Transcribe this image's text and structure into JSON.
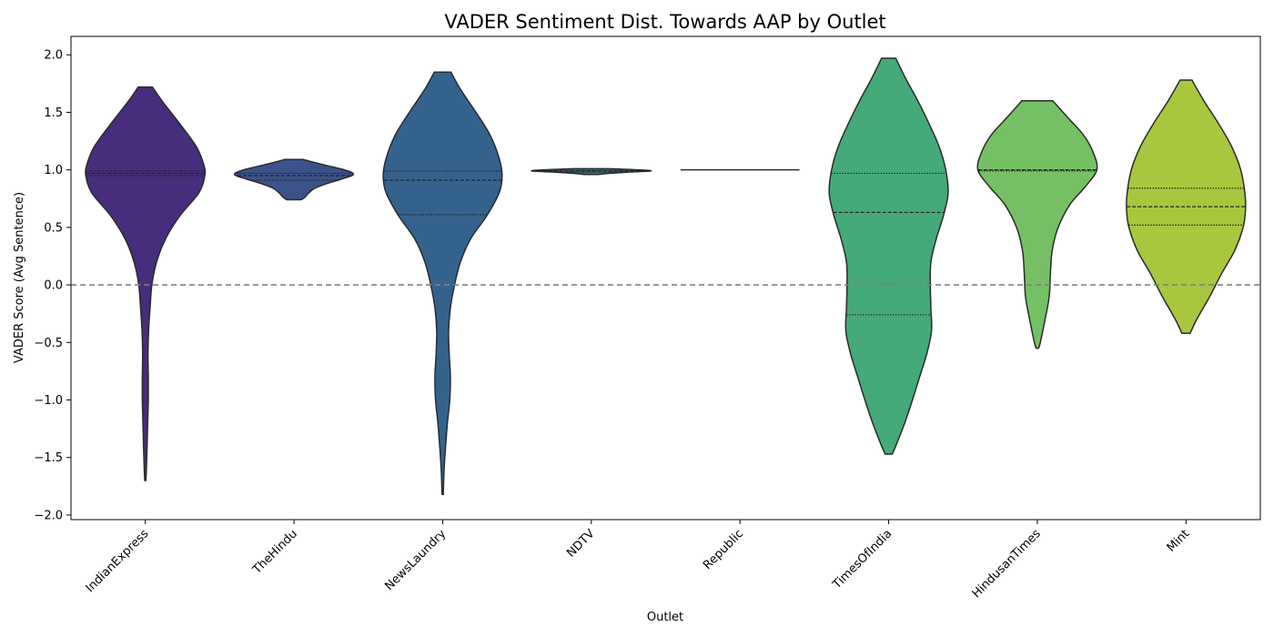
{
  "chart_data": {
    "type": "violin",
    "title": "VADER Sentiment Dist. Towards AAP by Outlet",
    "xlabel": "Outlet",
    "ylabel": "VADER Score (Avg Sentence)",
    "ylim": [
      -2.04,
      2.16
    ],
    "yticks": [
      -2.0,
      -1.5,
      -1.0,
      -0.5,
      0.0,
      0.5,
      1.0,
      1.5,
      2.0
    ],
    "ytick_labels": [
      "−2.0",
      "−1.5",
      "−1.0",
      "−0.5",
      "0.0",
      "0.5",
      "1.0",
      "1.5",
      "2.0"
    ],
    "reference_line": 0.0,
    "inner": "quartiles",
    "categories": [
      "IndianExpress",
      "TheHindu",
      "NewsLaundry",
      "NDTV",
      "Republic",
      "TimesOfIndia",
      "HindusanTimes",
      "Mint"
    ],
    "series": [
      {
        "category": "IndianExpress",
        "color": "#472d7b",
        "quartiles": [
          0.95,
          0.97,
          0.99
        ],
        "profile": [
          [
            1.72,
            0.12
          ],
          [
            1.6,
            0.28
          ],
          [
            1.4,
            0.58
          ],
          [
            1.2,
            0.86
          ],
          [
            1.05,
            0.98
          ],
          [
            0.95,
            1.0
          ],
          [
            0.8,
            0.9
          ],
          [
            0.6,
            0.58
          ],
          [
            0.4,
            0.34
          ],
          [
            0.2,
            0.19
          ],
          [
            0.0,
            0.11
          ],
          [
            -0.2,
            0.08
          ],
          [
            -0.4,
            0.055
          ],
          [
            -0.6,
            0.045
          ],
          [
            -0.8,
            0.05
          ],
          [
            -1.0,
            0.05
          ],
          [
            -1.2,
            0.04
          ],
          [
            -1.4,
            0.03
          ],
          [
            -1.6,
            0.018
          ],
          [
            -1.7,
            0.01
          ]
        ]
      },
      {
        "category": "TheHindu",
        "color": "#3b528b",
        "quartiles": [
          0.91,
          0.95,
          0.97
        ],
        "profile": [
          [
            1.09,
            0.15
          ],
          [
            1.05,
            0.45
          ],
          [
            1.0,
            0.85
          ],
          [
            0.96,
            1.0
          ],
          [
            0.92,
            0.8
          ],
          [
            0.88,
            0.55
          ],
          [
            0.84,
            0.35
          ],
          [
            0.8,
            0.25
          ],
          [
            0.76,
            0.18
          ],
          [
            0.74,
            0.12
          ]
        ]
      },
      {
        "category": "NewsLaundry",
        "color": "#33638d",
        "quartiles": [
          0.61,
          0.91,
          0.99
        ],
        "profile": [
          [
            1.85,
            0.14
          ],
          [
            1.7,
            0.3
          ],
          [
            1.5,
            0.56
          ],
          [
            1.3,
            0.8
          ],
          [
            1.1,
            0.95
          ],
          [
            0.95,
            1.0
          ],
          [
            0.8,
            0.95
          ],
          [
            0.6,
            0.74
          ],
          [
            0.4,
            0.47
          ],
          [
            0.2,
            0.3
          ],
          [
            0.0,
            0.2
          ],
          [
            -0.2,
            0.13
          ],
          [
            -0.4,
            0.1
          ],
          [
            -0.6,
            0.11
          ],
          [
            -0.8,
            0.13
          ],
          [
            -1.0,
            0.12
          ],
          [
            -1.2,
            0.08
          ],
          [
            -1.4,
            0.05
          ],
          [
            -1.6,
            0.025
          ],
          [
            -1.82,
            0.01
          ]
        ]
      },
      {
        "category": "NDTV",
        "color": "#2a788e",
        "quartiles": [
          0.98,
          0.99,
          0.995
        ],
        "profile": [
          [
            1.01,
            0.3
          ],
          [
            1.0,
            0.8
          ],
          [
            0.99,
            1.0
          ],
          [
            0.98,
            0.6
          ],
          [
            0.97,
            0.3
          ],
          [
            0.96,
            0.12
          ]
        ]
      },
      {
        "category": "Republic",
        "color": "#21918c",
        "quartiles": [
          1.0,
          1.0,
          1.0
        ],
        "profile": [
          [
            1.0,
            1.0
          ]
        ]
      },
      {
        "category": "TimesOfIndia",
        "color": "#44aa77",
        "quartiles": [
          -0.26,
          0.63,
          0.97
        ],
        "profile": [
          [
            1.97,
            0.12
          ],
          [
            1.8,
            0.28
          ],
          [
            1.6,
            0.49
          ],
          [
            1.4,
            0.68
          ],
          [
            1.2,
            0.85
          ],
          [
            1.0,
            0.96
          ],
          [
            0.8,
            1.0
          ],
          [
            0.6,
            0.92
          ],
          [
            0.4,
            0.8
          ],
          [
            0.2,
            0.71
          ],
          [
            0.0,
            0.7
          ],
          [
            -0.2,
            0.71
          ],
          [
            -0.4,
            0.72
          ],
          [
            -0.6,
            0.64
          ],
          [
            -0.8,
            0.52
          ],
          [
            -1.0,
            0.4
          ],
          [
            -1.2,
            0.27
          ],
          [
            -1.4,
            0.12
          ],
          [
            -1.47,
            0.06
          ]
        ]
      },
      {
        "category": "HindusanTimes",
        "color": "#75c064",
        "quartiles": [
          0.99,
          1.0,
          1.0
        ],
        "profile": [
          [
            1.6,
            0.26
          ],
          [
            1.45,
            0.52
          ],
          [
            1.3,
            0.78
          ],
          [
            1.15,
            0.94
          ],
          [
            1.0,
            1.0
          ],
          [
            0.85,
            0.8
          ],
          [
            0.7,
            0.55
          ],
          [
            0.5,
            0.35
          ],
          [
            0.3,
            0.25
          ],
          [
            0.1,
            0.22
          ],
          [
            -0.1,
            0.2
          ],
          [
            -0.3,
            0.13
          ],
          [
            -0.5,
            0.05
          ],
          [
            -0.55,
            0.02
          ]
        ]
      },
      {
        "category": "Mint",
        "color": "#a8c73f",
        "quartiles": [
          0.52,
          0.68,
          0.84
        ],
        "profile": [
          [
            1.78,
            0.1
          ],
          [
            1.6,
            0.3
          ],
          [
            1.4,
            0.55
          ],
          [
            1.2,
            0.77
          ],
          [
            1.0,
            0.92
          ],
          [
            0.8,
            0.99
          ],
          [
            0.65,
            1.0
          ],
          [
            0.5,
            0.96
          ],
          [
            0.3,
            0.82
          ],
          [
            0.1,
            0.6
          ],
          [
            -0.1,
            0.4
          ],
          [
            -0.3,
            0.18
          ],
          [
            -0.42,
            0.07
          ]
        ]
      }
    ]
  }
}
